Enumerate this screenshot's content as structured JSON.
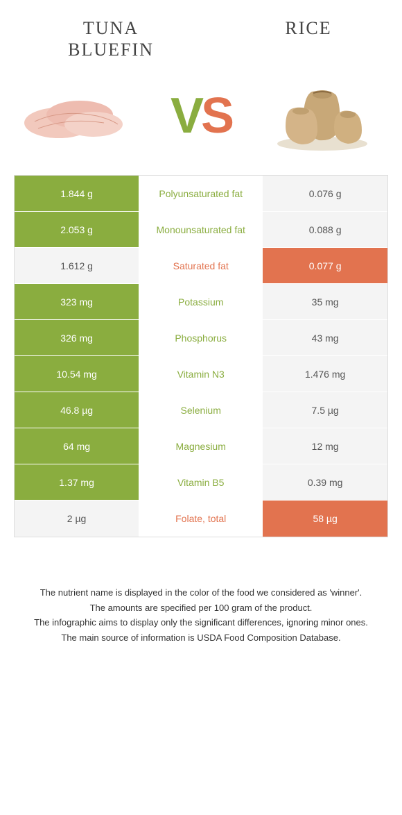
{
  "header": {
    "left_title": "TUNA BLUEFIN",
    "right_title": "RICE"
  },
  "vs": {
    "v": "V",
    "s": "S"
  },
  "colors": {
    "green": "#8aad3f",
    "orange": "#e2734f",
    "grey": "#f4f4f4",
    "white": "#ffffff"
  },
  "rows": [
    {
      "left": "1.844 g",
      "mid": "Polyunsaturated fat",
      "right": "0.076 g",
      "winner": "left"
    },
    {
      "left": "2.053 g",
      "mid": "Monounsaturated fat",
      "right": "0.088 g",
      "winner": "left"
    },
    {
      "left": "1.612 g",
      "mid": "Saturated fat",
      "right": "0.077 g",
      "winner": "right"
    },
    {
      "left": "323 mg",
      "mid": "Potassium",
      "right": "35 mg",
      "winner": "left"
    },
    {
      "left": "326 mg",
      "mid": "Phosphorus",
      "right": "43 mg",
      "winner": "left"
    },
    {
      "left": "10.54 mg",
      "mid": "Vitamin N3",
      "right": "1.476 mg",
      "winner": "left"
    },
    {
      "left": "46.8 µg",
      "mid": "Selenium",
      "right": "7.5 µg",
      "winner": "left"
    },
    {
      "left": "64 mg",
      "mid": "Magnesium",
      "right": "12 mg",
      "winner": "left"
    },
    {
      "left": "1.37 mg",
      "mid": "Vitamin B5",
      "right": "0.39 mg",
      "winner": "left"
    },
    {
      "left": "2 µg",
      "mid": "Folate, total",
      "right": "58 µg",
      "winner": "right"
    }
  ],
  "footnotes": [
    "The nutrient name is displayed in the color of the food we considered as 'winner'.",
    "The amounts are specified per 100 gram of the product.",
    "The infographic aims to display only the significant differences, ignoring minor ones.",
    "The main source of information is USDA Food Composition Database."
  ]
}
